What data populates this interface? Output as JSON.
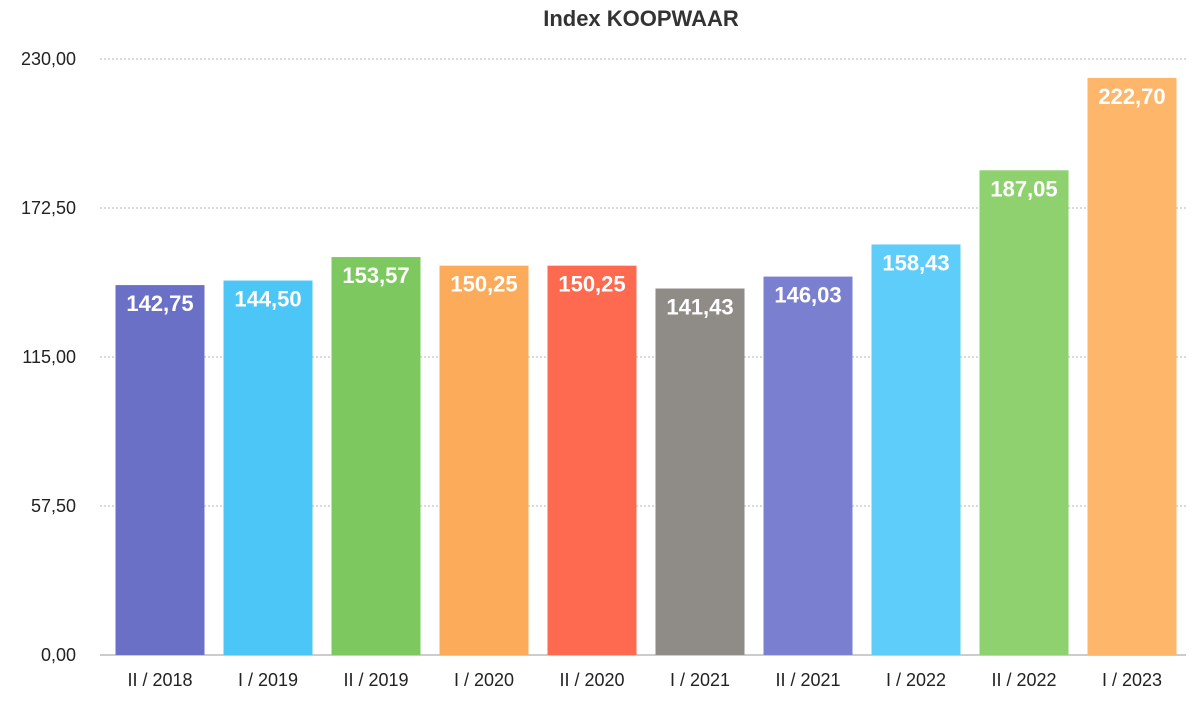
{
  "chart_data": {
    "type": "bar",
    "title": "Index KOOPWAAR",
    "xlabel": "",
    "ylabel": "",
    "ylim": [
      0,
      230
    ],
    "yticks": [
      "0,00",
      "57,50",
      "115,00",
      "172,50",
      "230,00"
    ],
    "ytick_values": [
      0,
      57.5,
      115,
      172.5,
      230
    ],
    "grid": true,
    "categories": [
      "II / 2018",
      "I / 2019",
      "II / 2019",
      "I / 2020",
      "II / 2020",
      "I / 2021",
      "II / 2021",
      "I / 2022",
      "II / 2022",
      "I / 2023"
    ],
    "values": [
      142.75,
      144.5,
      153.57,
      150.25,
      150.25,
      141.43,
      146.03,
      158.43,
      187.05,
      222.7
    ],
    "value_labels": [
      "142,75",
      "144,50",
      "153,57",
      "150,25",
      "150,25",
      "141,43",
      "146,03",
      "158,43",
      "187,05",
      "222,70"
    ],
    "colors": [
      "#6a70c6",
      "#4bc6f7",
      "#7ec95f",
      "#fcab5a",
      "#fd6a50",
      "#8f8b86",
      "#7a80cf",
      "#5ecdfa",
      "#8fd16e",
      "#fdb66a"
    ]
  }
}
